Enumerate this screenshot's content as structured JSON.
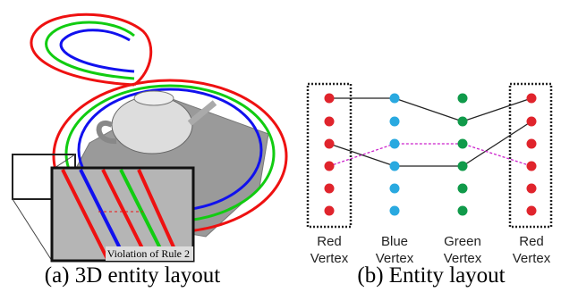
{
  "panel_a": {
    "inset_label": "Violation of Rule 2",
    "caption": "(a) 3D entity layout"
  },
  "panel_b": {
    "columns": [
      {
        "lines": [
          "Red",
          "Vertex"
        ]
      },
      {
        "lines": [
          "Blue",
          "Vertex"
        ]
      },
      {
        "lines": [
          "Green",
          "Vertex"
        ]
      },
      {
        "lines": [
          "Red",
          "Vertex"
        ]
      }
    ],
    "caption": "(b) Entity layout"
  }
}
